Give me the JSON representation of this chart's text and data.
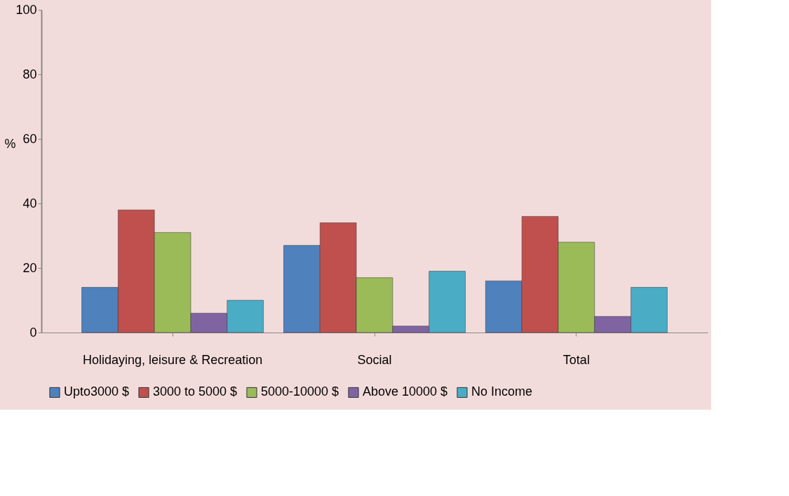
{
  "chart_data": {
    "type": "bar",
    "ylabel": "%",
    "categories": [
      "Holidaying, leisure & Recreation",
      "Social",
      "Total"
    ],
    "series": [
      {
        "name": "Upto3000 $",
        "color": "#4f81bd",
        "values": [
          14,
          27,
          16
        ]
      },
      {
        "name": "3000 to 5000 $",
        "color": "#c0504d",
        "values": [
          38,
          34,
          36
        ]
      },
      {
        "name": "5000-10000 $",
        "color": "#9bbb59",
        "values": [
          31,
          17,
          28
        ]
      },
      {
        "name": "Above 10000 $",
        "color": "#8064a2",
        "values": [
          6,
          2,
          5
        ]
      },
      {
        "name": "No Income",
        "color": "#4bacc6",
        "values": [
          10,
          19,
          14
        ]
      }
    ],
    "ylim": [
      0,
      100
    ],
    "yticks": [
      0,
      20,
      40,
      60,
      80,
      100
    ],
    "grid": false,
    "legend": "bottom"
  }
}
